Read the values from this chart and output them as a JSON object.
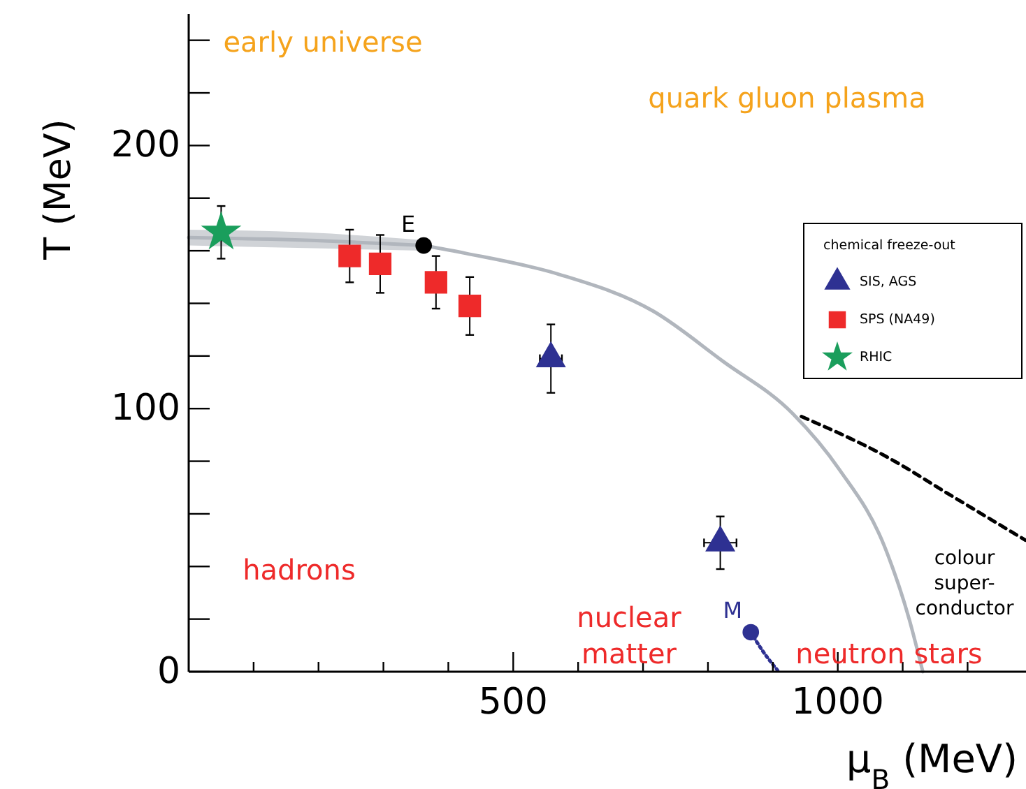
{
  "chart_data": {
    "type": "scatter",
    "xlabel": "μ$_{B}$ (MeV)",
    "ylabel": "T (MeV)",
    "xlim": [
      0,
      1290
    ],
    "ylim": [
      0,
      250
    ],
    "xticks": [
      {
        "value": 100,
        "label": null
      },
      {
        "value": 200,
        "label": null
      },
      {
        "value": 300,
        "label": null
      },
      {
        "value": 400,
        "label": null
      },
      500,
      {
        "value": 600,
        "label": null
      },
      {
        "value": 700,
        "label": null
      },
      {
        "value": 800,
        "label": null
      },
      {
        "value": 900,
        "label": null
      },
      1000,
      {
        "value": 1100,
        "label": null
      },
      {
        "value": 1200,
        "label": null
      }
    ],
    "yticks": [
      0,
      {
        "value": 20,
        "label": null
      },
      {
        "value": 40,
        "label": null
      },
      {
        "value": 60,
        "label": null
      },
      {
        "value": 80,
        "label": null
      },
      100,
      {
        "value": 120,
        "label": null
      },
      {
        "value": 140,
        "label": null
      },
      {
        "value": 160,
        "label": null
      },
      {
        "value": 180,
        "label": null
      },
      200,
      {
        "value": 220,
        "label": null
      },
      {
        "value": 240,
        "label": null
      }
    ],
    "grid": false,
    "legend": "right",
    "legend_title": "chemical freeze-out",
    "series": [
      {
        "name": "SIS, AGS",
        "marker": "triangle",
        "color": "#2e3192",
        "x": [
          558,
          819
        ],
        "values": [
          119,
          49
        ],
        "errors": [
          13,
          10
        ],
        "xerrors": [
          17,
          25
        ]
      },
      {
        "name": "SPS (NA49)",
        "marker": "square",
        "color": "#ee2a2a",
        "x": [
          248,
          295,
          381,
          433
        ],
        "values": [
          158,
          155,
          148,
          139
        ],
        "errors": [
          10,
          11,
          10,
          11
        ]
      },
      {
        "name": "RHIC",
        "marker": "star",
        "color": "#1a9e5c",
        "x": [
          50
        ],
        "values": [
          167
        ],
        "errors": [
          10
        ]
      },
      {
        "marker": "circle",
        "color": "#000000",
        "x": [
          362
        ],
        "values": [
          162
        ]
      },
      {
        "marker": "circle",
        "color": "#2e3192",
        "x": [
          866
        ],
        "values": [
          15
        ]
      },
      {
        "type": "line",
        "color": "#b1b6bd",
        "x": [
          0,
          180,
          362
        ],
        "values": [
          165,
          164,
          162
        ],
        "lower": [
          162,
          161,
          160
        ],
        "upper": [
          168,
          167,
          164
        ]
      },
      {
        "type": "line",
        "color": "#b1b6bd",
        "x": [
          362,
          427,
          571,
          716,
          823,
          931,
          1002,
          1073,
          1110,
          1131
        ],
        "values": [
          162,
          159,
          151,
          137,
          118,
          98,
          77,
          47,
          20,
          0
        ]
      },
      {
        "type": "line",
        "color": "#000000",
        "line_style": "dashed",
        "x": [
          944,
          1073,
          1181,
          1289
        ],
        "values": [
          97,
          82,
          66,
          50
        ]
      },
      {
        "type": "line",
        "color": "#2e3192",
        "line_style": "dotted",
        "x": [
          866,
          884,
          909
        ],
        "values": [
          15,
          8,
          0
        ]
      }
    ],
    "annotations": [
      {
        "text": "E",
        "x": 362,
        "y": 162
      },
      {
        "text": "M",
        "x": 866,
        "y": 15
      },
      "early universe",
      "quark gluon plasma",
      "hadrons",
      "nuclear\nmatter",
      "neutron stars",
      "colour\nsuper-\nconductor"
    ]
  }
}
